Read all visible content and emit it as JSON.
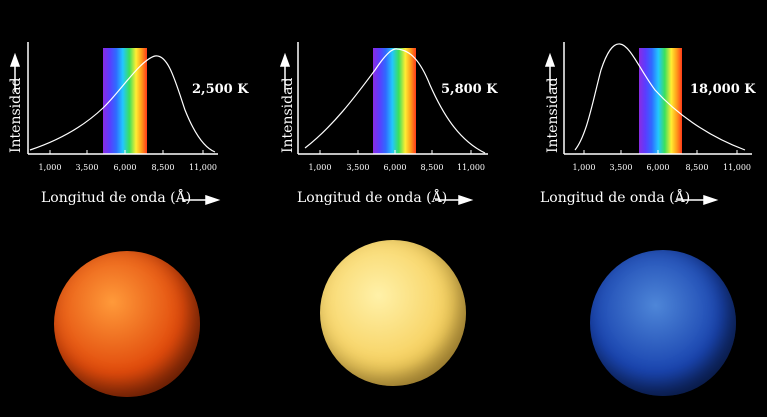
{
  "colors": {
    "background": "#000000",
    "axis": "#ffffff"
  },
  "panels": [
    {
      "temperature": "2,500 K",
      "ylabel": "Intensidad",
      "xlabel": "Longitud de onda (Å)",
      "ticks": [
        "1,000",
        "3,500",
        "6,000",
        "8,500",
        "11,000"
      ],
      "star_color": [
        "#ff9a3a",
        "#e14b0c",
        "#8a1f04"
      ]
    },
    {
      "temperature": "5,800 K",
      "ylabel": "Intensidad",
      "xlabel": "Longitud de onda (Å)",
      "ticks": [
        "1,000",
        "3,500",
        "6,000",
        "8,500",
        "11,000"
      ],
      "star_color": [
        "#fff1a8",
        "#f6cf5c",
        "#c99424"
      ]
    },
    {
      "temperature": "18,000 K",
      "ylabel": "Intensidad",
      "xlabel": "Longitud de onda (Å)",
      "ticks": [
        "1,000",
        "3,500",
        "6,000",
        "8,500",
        "11,000"
      ],
      "star_color": [
        "#4e86d8",
        "#1a45b0",
        "#0a1f5c"
      ]
    }
  ],
  "chart_data": [
    {
      "type": "line",
      "x_ticks": [
        1000,
        3500,
        6000,
        8500,
        11000
      ],
      "peak_wavelength": 7500
    },
    {
      "type": "line",
      "x_ticks": [
        1000,
        3500,
        6000,
        8500,
        11000
      ],
      "peak_wavelength": 6000
    },
    {
      "type": "line",
      "x_ticks": [
        1000,
        3500,
        6000,
        8500,
        11000
      ],
      "peak_wavelength": 3000
    }
  ]
}
